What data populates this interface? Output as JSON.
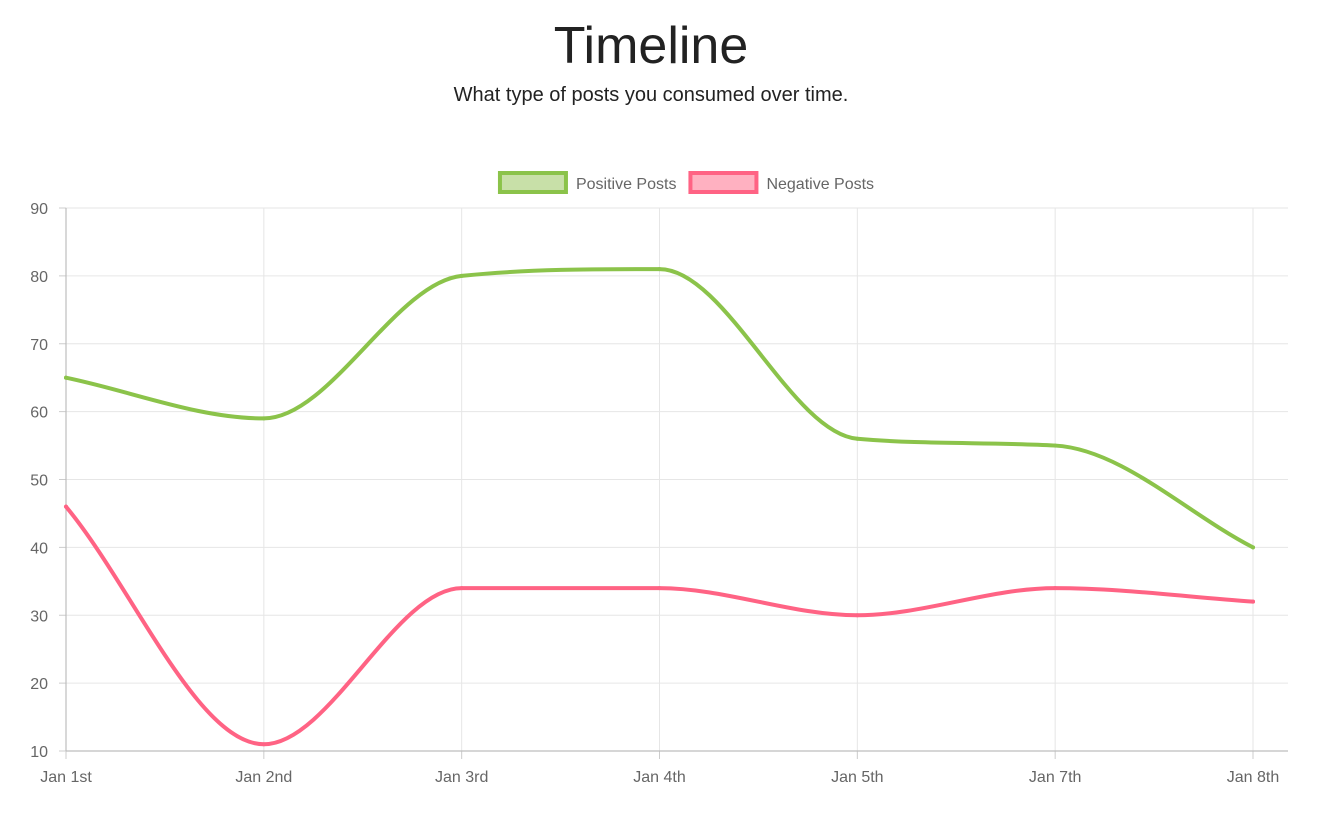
{
  "header": {
    "title": "Timeline",
    "subtitle": "What type of posts you consumed over time."
  },
  "chart_data": {
    "type": "line",
    "categories": [
      "Jan 1st",
      "Jan 2nd",
      "Jan 3rd",
      "Jan 4th",
      "Jan 5th",
      "Jan 7th",
      "Jan 8th"
    ],
    "series": [
      {
        "name": "Positive Posts",
        "values": [
          65,
          59,
          80,
          81,
          56,
          55,
          40
        ],
        "color": "#8bc34a",
        "fill": "#c8e0a8"
      },
      {
        "name": "Negative Posts",
        "values": [
          46,
          11,
          34,
          34,
          30,
          34,
          32
        ],
        "color": "#ff6384",
        "fill": "#ffb1c1"
      }
    ],
    "ylim": [
      10,
      90
    ],
    "yticks": [
      10,
      20,
      30,
      40,
      50,
      60,
      70,
      80,
      90
    ],
    "grid": true,
    "legend": "top-center",
    "curve": "smooth"
  }
}
